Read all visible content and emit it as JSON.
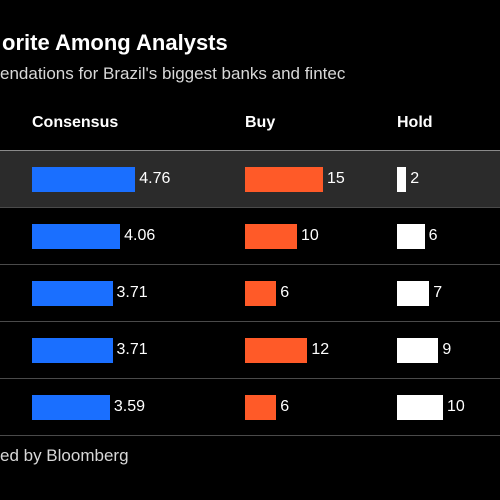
{
  "header": {
    "title": "orite Among Analysts",
    "subtitle": "endations for Brazil's biggest banks and fintec"
  },
  "footer": {
    "source": "ed by Bloomberg"
  },
  "colors": {
    "consensus": "#1a6fff",
    "buy": "#ff5a28",
    "hold": "#ffffff",
    "background": "#000000",
    "highlight_row": "#2b2b2b"
  },
  "chart_data": {
    "type": "bar",
    "title": "orite Among Analysts",
    "subtitle": "endations for Brazil's biggest banks and fintec",
    "columns": [
      "Consensus",
      "Buy",
      "Hold"
    ],
    "highlighted_row": 0,
    "series": [
      {
        "name": "Consensus",
        "values": [
          4.76,
          4.06,
          3.71,
          3.71,
          3.59
        ],
        "labels": [
          "4.76",
          "4.06",
          "3.71",
          "3.71",
          "3.59"
        ]
      },
      {
        "name": "Buy",
        "values": [
          15,
          10,
          6,
          12,
          6
        ],
        "labels": [
          "15",
          "10",
          "6",
          "12",
          "6"
        ]
      },
      {
        "name": "Hold",
        "values": [
          2,
          6,
          7,
          9,
          10
        ],
        "labels": [
          "2",
          "6",
          "7",
          "9",
          "10"
        ]
      }
    ],
    "source": "ed by Bloomberg"
  }
}
